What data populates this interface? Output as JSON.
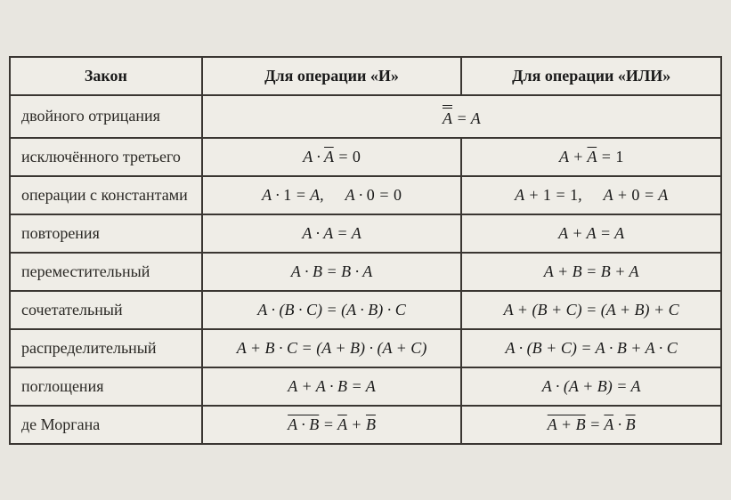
{
  "table": {
    "type": "table",
    "background_color": "#efede7",
    "border_color": "#3a3632",
    "text_color": "#1a1a1a",
    "font_family": "Times New Roman",
    "header_fontsize": 18,
    "cell_fontsize": 18,
    "column_widths": [
      "27%",
      "36.5%",
      "36.5%"
    ],
    "headers": {
      "law": "Закон",
      "and": "Для операции «И»",
      "or": "Для операции «ИЛИ»"
    },
    "rows": {
      "double_neg": {
        "name": "двойного отрицания",
        "merged": true,
        "formula_plain": "¬¬A = A"
      },
      "excluded_middle": {
        "name": "исключённого третьего",
        "and_plain": "A · ¬A = 0",
        "or_plain": "A + ¬A = 1"
      },
      "constants": {
        "name": "операции с константами",
        "and_plain": "A·1 = A,  A·0 = 0",
        "or_plain": "A+1 = 1,  A+0 = A"
      },
      "idempotent": {
        "name": "повторения",
        "and_plain": "A · A = A",
        "or_plain": "A + A = A"
      },
      "commutative": {
        "name": "переместительный",
        "and_plain": "A · B = B · A",
        "or_plain": "A + B = B + A"
      },
      "associative": {
        "name": "сочетательный",
        "and_plain": "A · (B·C) = (A·B) · C",
        "or_plain": "A + (B+C) = (A+B) + C"
      },
      "distributive": {
        "name": "распределительный",
        "and_plain": "A + B·C = (A+B)·(A+C)",
        "or_plain": "A · (B+C) = A·B + A·C"
      },
      "absorption": {
        "name": "поглощения",
        "and_plain": "A + A·B = A",
        "or_plain": "A · (A+B) = A"
      },
      "de_morgan": {
        "name": "де Моргана",
        "and_plain": "¬(A·B) = ¬A + ¬B",
        "or_plain": "¬(A+B) = ¬A · ¬B"
      }
    }
  }
}
